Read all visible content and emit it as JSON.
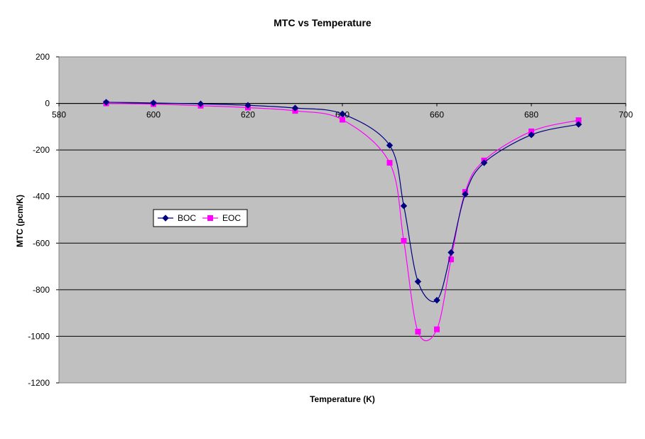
{
  "chart_data": {
    "type": "line",
    "title": "MTC vs Temperature",
    "xlabel": "Temperature (K)",
    "ylabel": "MTC (pcm/K)",
    "xlim": [
      580,
      700
    ],
    "ylim": [
      -1200,
      200
    ],
    "x_ticks": [
      "580",
      "600",
      "620",
      "640",
      "660",
      "680",
      "700"
    ],
    "y_ticks": [
      "200",
      "0",
      "-200",
      "-400",
      "-600",
      "-800",
      "-1000",
      "-1200"
    ],
    "grid": "horizontal",
    "legend_position": "left-center",
    "plot_background": "#c0c0c0",
    "series": [
      {
        "name": "BOC",
        "color": "#000080",
        "marker": "diamond",
        "x": [
          590,
          600,
          610,
          620,
          630,
          640,
          650,
          653,
          656,
          660,
          663,
          666,
          670,
          680,
          690
        ],
        "y": [
          5,
          2,
          -2,
          -8,
          -20,
          -45,
          -180,
          -440,
          -765,
          -845,
          -640,
          -390,
          -255,
          -135,
          -90
        ]
      },
      {
        "name": "EOC",
        "color": "#ff00ff",
        "marker": "square",
        "x": [
          590,
          600,
          610,
          620,
          630,
          640,
          650,
          653,
          656,
          660,
          663,
          666,
          670,
          680,
          690
        ],
        "y": [
          0,
          -3,
          -10,
          -18,
          -32,
          -70,
          -255,
          -590,
          -980,
          -970,
          -670,
          -380,
          -245,
          -120,
          -72
        ]
      }
    ]
  }
}
